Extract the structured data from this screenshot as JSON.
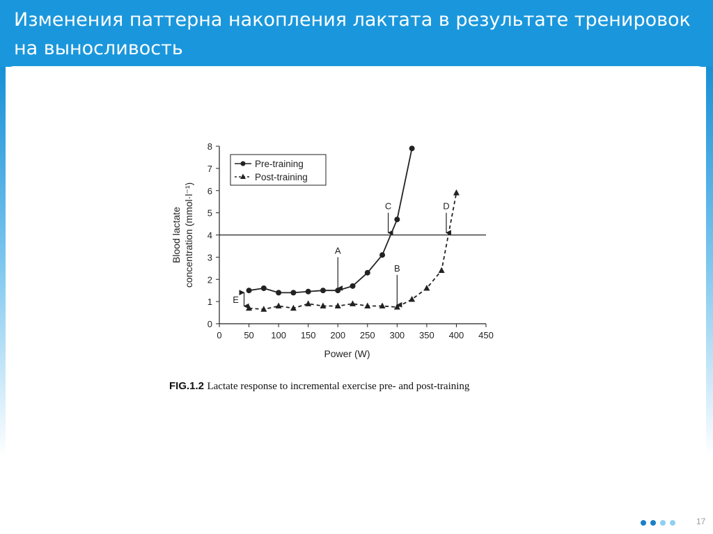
{
  "slide": {
    "title": "Изменения паттерна накопления лактата в результате тренировок на выносливость",
    "page_number": "17",
    "colors": {
      "header": "#1a97dc",
      "dot_dark": "#1a7fc9",
      "dot_light": "#8fd0f2"
    }
  },
  "figure": {
    "caption_label": "FIG.1.2",
    "caption_text": "Lactate response to incremental exercise pre- and post-training"
  },
  "chart_data": {
    "type": "line",
    "xlabel": "Power (W)",
    "ylabel_line1": "Blood lactate",
    "ylabel_line2": "concentration (mmol·l⁻¹)",
    "xlim": [
      0,
      450
    ],
    "ylim": [
      0,
      8
    ],
    "x_ticks": [
      0,
      50,
      100,
      150,
      200,
      250,
      300,
      350,
      400,
      450
    ],
    "y_ticks": [
      0,
      1,
      2,
      3,
      4,
      5,
      6,
      7,
      8
    ],
    "reference_line": {
      "y": 4
    },
    "legend_position": "top-left",
    "grid": false,
    "series": [
      {
        "name": "Pre-training",
        "marker": "circle",
        "line_style": "solid",
        "x": [
          50,
          75,
          100,
          125,
          150,
          175,
          200,
          225,
          250,
          275,
          300,
          325
        ],
        "y": [
          1.5,
          1.6,
          1.4,
          1.4,
          1.45,
          1.5,
          1.5,
          1.7,
          2.3,
          3.1,
          4.7,
          7.9
        ]
      },
      {
        "name": "Post-training",
        "marker": "triangle",
        "line_style": "dashed",
        "x": [
          50,
          75,
          100,
          125,
          150,
          175,
          200,
          225,
          250,
          275,
          300,
          325,
          350,
          375,
          400
        ],
        "y": [
          0.7,
          0.65,
          0.8,
          0.7,
          0.9,
          0.8,
          0.8,
          0.9,
          0.8,
          0.8,
          0.75,
          1.1,
          1.6,
          2.4,
          5.9
        ]
      }
    ],
    "annotations": [
      {
        "label": "A",
        "x": 200,
        "y_from": 3.0,
        "y_to": 1.6
      },
      {
        "label": "B",
        "x": 300,
        "y_from": 2.2,
        "y_to": 0.85
      },
      {
        "label": "C",
        "x": 285,
        "y_from": 5.0,
        "y_to": 4.1
      },
      {
        "label": "D",
        "x": 383,
        "y_from": 5.0,
        "y_to": 4.1
      },
      {
        "label": "E",
        "x": 30,
        "y_from": 0.7,
        "y_to": 1.5
      }
    ]
  }
}
